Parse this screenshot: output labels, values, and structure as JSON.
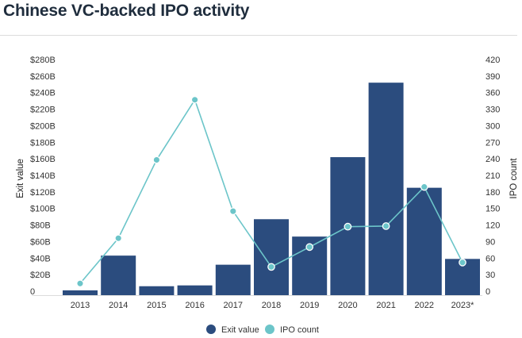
{
  "title": "Chinese VC-backed IPO activity",
  "chart_data": {
    "type": "bar+line",
    "title": "Chinese VC-backed IPO activity",
    "categories": [
      "2013",
      "2014",
      "2015",
      "2016",
      "2017",
      "2018",
      "2019",
      "2020",
      "2021",
      "2022",
      "2023*"
    ],
    "series": [
      {
        "name": "Exit value",
        "type": "bar",
        "axis": "left",
        "color": "#2b4c7e",
        "unit": "$B",
        "values": [
          1,
          43,
          6,
          7,
          32,
          87,
          66,
          162,
          252,
          125,
          39
        ]
      },
      {
        "name": "IPO count",
        "type": "line",
        "axis": "right",
        "color": "#6cc5c9",
        "values": [
          14,
          96,
          238,
          347,
          145,
          44,
          80,
          117,
          118,
          189,
          52
        ]
      }
    ],
    "ylabel": "Exit value",
    "y2label": "IPO count",
    "ylim": [
      0,
      280
    ],
    "y2lim": [
      0,
      420
    ],
    "yticks": [
      "0",
      "$20B",
      "$40B",
      "$60B",
      "$80B",
      "$100B",
      "$120B",
      "$140B",
      "$160B",
      "$180B",
      "$200B",
      "$220B",
      "$240B",
      "$260B",
      "$280B"
    ],
    "y2ticks": [
      "0",
      "30",
      "60",
      "90",
      "120",
      "150",
      "180",
      "210",
      "240",
      "270",
      "300",
      "330",
      "360",
      "390",
      "420"
    ],
    "grid": false,
    "legend": "bottom"
  }
}
